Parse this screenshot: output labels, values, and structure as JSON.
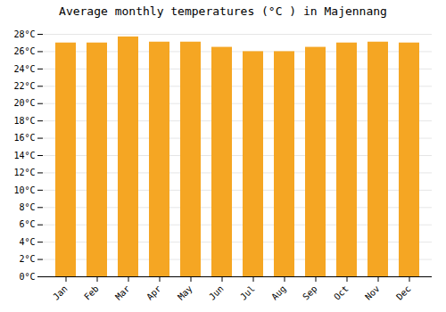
{
  "chart_data": {
    "type": "bar",
    "title": "Average monthly temperatures (°C ) in Majennang",
    "categories": [
      "Jan",
      "Feb",
      "Mar",
      "Apr",
      "May",
      "Jun",
      "Jul",
      "Aug",
      "Sep",
      "Oct",
      "Nov",
      "Dec"
    ],
    "values": [
      27.0,
      27.0,
      27.7,
      27.1,
      27.1,
      26.5,
      26.0,
      26.0,
      26.5,
      27.0,
      27.1,
      27.0
    ],
    "color": "#F5A623",
    "ylim": [
      0,
      28
    ],
    "yticks": [
      {
        "value": 0,
        "label": "0°C"
      },
      {
        "value": 2,
        "label": "2°C"
      },
      {
        "value": 4,
        "label": "4°C"
      },
      {
        "value": 6,
        "label": "6°C"
      },
      {
        "value": 8,
        "label": "8°C"
      },
      {
        "value": 10,
        "label": "10°C"
      },
      {
        "value": 12,
        "label": "12°C"
      },
      {
        "value": 14,
        "label": "14°C"
      },
      {
        "value": 16,
        "label": "16°C"
      },
      {
        "value": 18,
        "label": "18°C"
      },
      {
        "value": 20,
        "label": "20°C"
      },
      {
        "value": 22,
        "label": "22°C"
      },
      {
        "value": 24,
        "label": "24°C"
      },
      {
        "value": 26,
        "label": "26°C"
      },
      {
        "value": 28,
        "label": "28°C"
      }
    ],
    "grid": true
  }
}
